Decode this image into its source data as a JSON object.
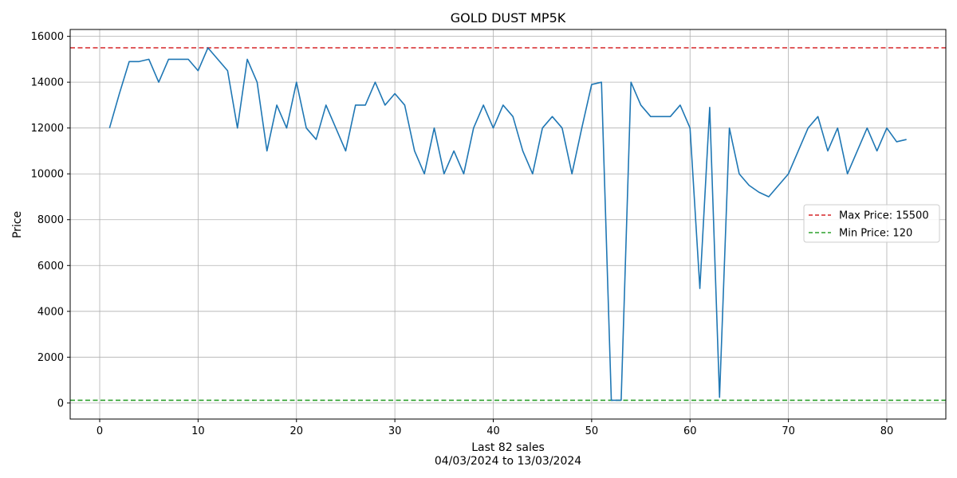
{
  "chart_data": {
    "type": "line",
    "title": "GOLD DUST MP5K",
    "xlabel": "Last 82 sales",
    "xlabel_sub": "04/03/2024 to 13/03/2024",
    "ylabel": "Price",
    "xlim": [
      -3,
      86
    ],
    "ylim": [
      -700,
      16300
    ],
    "xticks": [
      0,
      10,
      20,
      30,
      40,
      50,
      60,
      70,
      80
    ],
    "yticks": [
      0,
      2000,
      4000,
      6000,
      8000,
      10000,
      12000,
      14000,
      16000
    ],
    "grid": true,
    "legend_position": "center-right",
    "series": [
      {
        "color": "#1f77b4",
        "x": [
          1,
          2,
          3,
          4,
          5,
          6,
          7,
          8,
          9,
          10,
          11,
          12,
          13,
          14,
          15,
          16,
          17,
          18,
          19,
          20,
          21,
          22,
          23,
          24,
          25,
          26,
          27,
          28,
          29,
          30,
          31,
          32,
          33,
          34,
          35,
          36,
          37,
          38,
          39,
          40,
          41,
          42,
          43,
          44,
          45,
          46,
          47,
          48,
          49,
          50,
          51,
          52,
          53,
          54,
          55,
          56,
          57,
          58,
          59,
          60,
          61,
          62,
          63,
          64,
          65,
          66,
          67,
          68,
          69,
          70,
          71,
          72,
          73,
          74,
          75,
          76,
          77,
          78,
          79,
          80,
          81,
          82
        ],
        "y": [
          12000,
          13500,
          14900,
          14900,
          15000,
          14000,
          15000,
          15000,
          15000,
          14500,
          15500,
          15000,
          14500,
          12000,
          15000,
          14000,
          11000,
          13000,
          12000,
          14000,
          12000,
          11500,
          13000,
          12000,
          11000,
          13000,
          13000,
          14000,
          13000,
          13500,
          13000,
          11000,
          10000,
          12000,
          10000,
          11000,
          10000,
          12000,
          13000,
          12000,
          13000,
          12500,
          11000,
          10000,
          12000,
          12500,
          12000,
          10000,
          12000,
          13900,
          14000,
          120,
          120,
          14000,
          13000,
          12500,
          12500,
          12500,
          13000,
          12000,
          5000,
          12900,
          250,
          12000,
          10000,
          9500,
          9200,
          9000,
          9500,
          10000,
          11000,
          12000,
          12500,
          11000,
          12000,
          10000,
          11000,
          12000,
          11000,
          12000,
          11400,
          11500
        ]
      }
    ],
    "reference_lines": [
      {
        "name": "Max Price: 15500",
        "value": 15500,
        "color": "#d62728"
      },
      {
        "name": "Min Price: 120",
        "value": 120,
        "color": "#2ca02c"
      }
    ]
  }
}
